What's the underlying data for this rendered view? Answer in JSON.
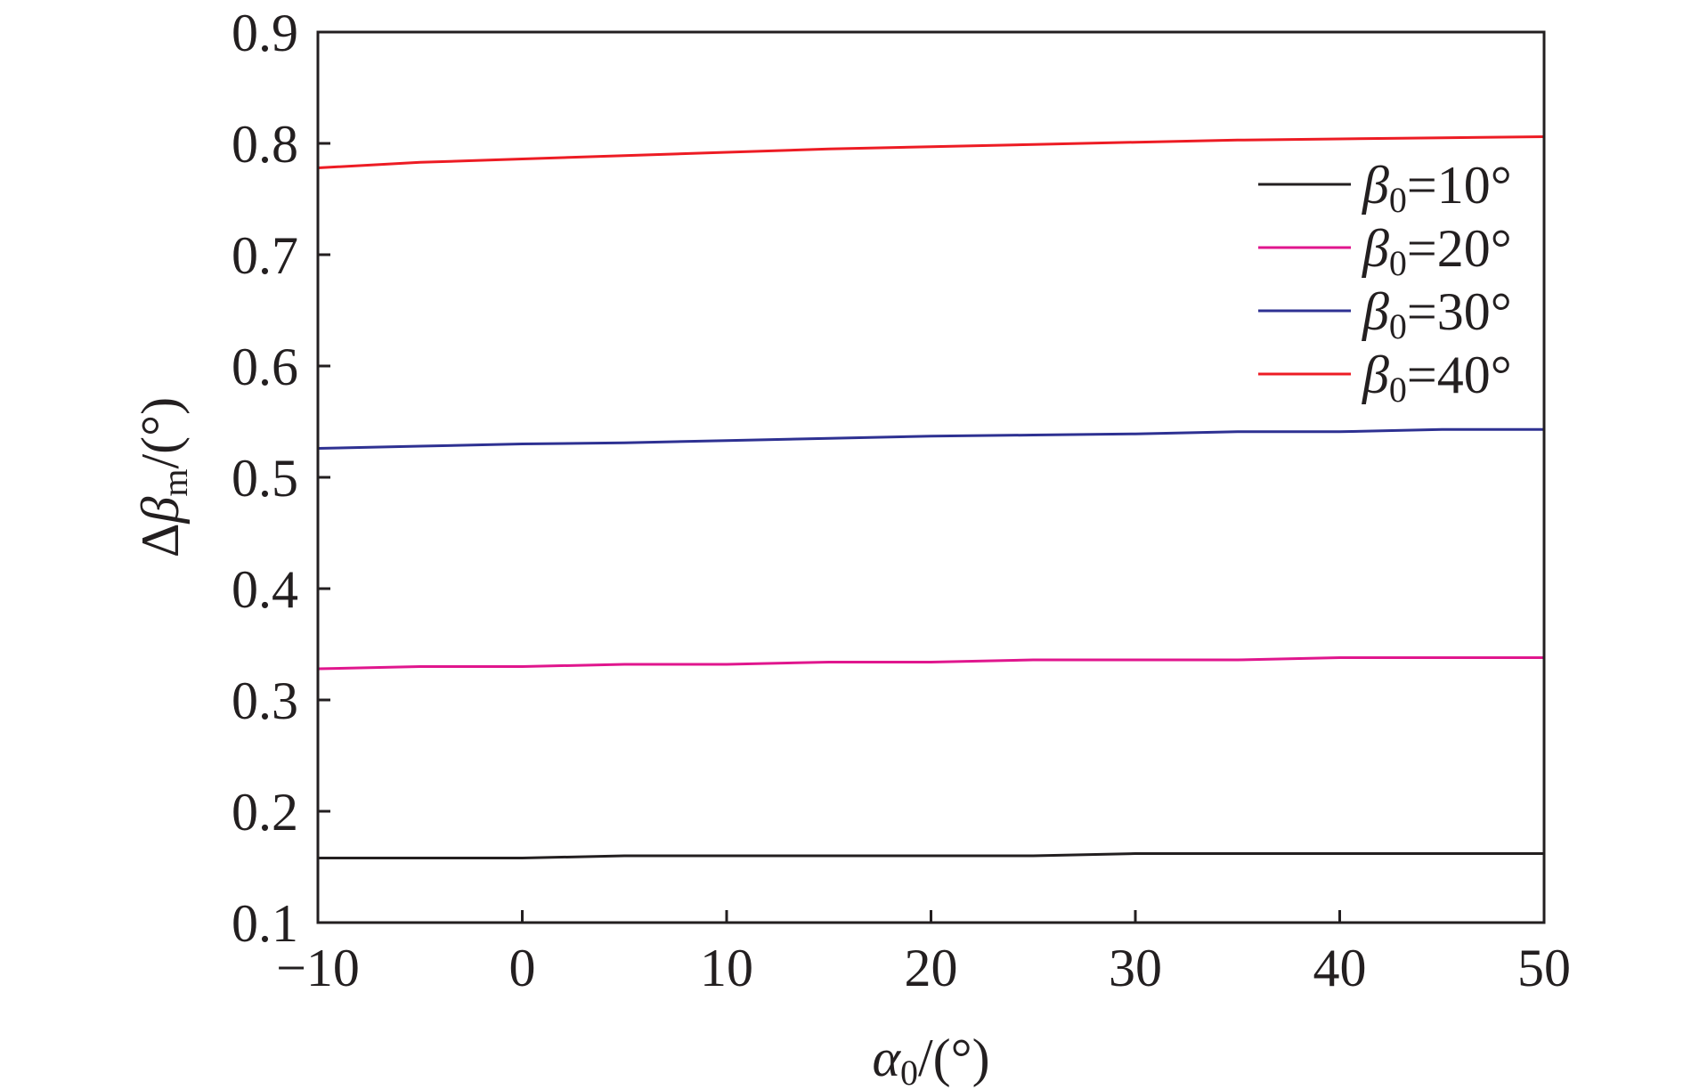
{
  "chart_data": {
    "type": "line",
    "title": "",
    "xlabel": {
      "base": "α",
      "sub": "0",
      "unit": "/(°)"
    },
    "ylabel": {
      "prefix": "Δ",
      "base": "β",
      "sub": "m",
      "unit": "/(°)"
    },
    "xlim": [
      -10,
      50
    ],
    "ylim": [
      0.1,
      0.9
    ],
    "xticks": [
      -10,
      0,
      10,
      20,
      30,
      40,
      50
    ],
    "xtick_labels": [
      "−10",
      "0",
      "10",
      "20",
      "30",
      "40",
      "50"
    ],
    "yticks": [
      0.1,
      0.2,
      0.3,
      0.4,
      0.5,
      0.6,
      0.7,
      0.8,
      0.9
    ],
    "ytick_labels": [
      "0.1",
      "0.2",
      "0.3",
      "0.4",
      "0.5",
      "0.6",
      "0.7",
      "0.8",
      "0.9"
    ],
    "grid": false,
    "legend_position": "top-right",
    "x": [
      -10,
      -5,
      0,
      5,
      10,
      15,
      20,
      25,
      30,
      35,
      40,
      45,
      50
    ],
    "series": [
      {
        "name_base": "β",
        "name_sub": "0",
        "name_value": "=10°",
        "color": "#231f20",
        "values": [
          0.158,
          0.158,
          0.158,
          0.16,
          0.16,
          0.16,
          0.16,
          0.16,
          0.162,
          0.162,
          0.162,
          0.162,
          0.162
        ]
      },
      {
        "name_base": "β",
        "name_sub": "0",
        "name_value": "=20°",
        "color": "#e0168d",
        "values": [
          0.328,
          0.33,
          0.33,
          0.332,
          0.332,
          0.334,
          0.334,
          0.336,
          0.336,
          0.336,
          0.338,
          0.338,
          0.338
        ]
      },
      {
        "name_base": "β",
        "name_sub": "0",
        "name_value": "=30°",
        "color": "#2e3192",
        "values": [
          0.526,
          0.528,
          0.53,
          0.531,
          0.533,
          0.535,
          0.537,
          0.538,
          0.539,
          0.541,
          0.541,
          0.543,
          0.543
        ]
      },
      {
        "name_base": "β",
        "name_sub": "0",
        "name_value": "=40°",
        "color": "#ed1c24",
        "values": [
          0.778,
          0.783,
          0.786,
          0.789,
          0.792,
          0.795,
          0.797,
          0.799,
          0.801,
          0.803,
          0.804,
          0.805,
          0.806
        ]
      }
    ]
  }
}
